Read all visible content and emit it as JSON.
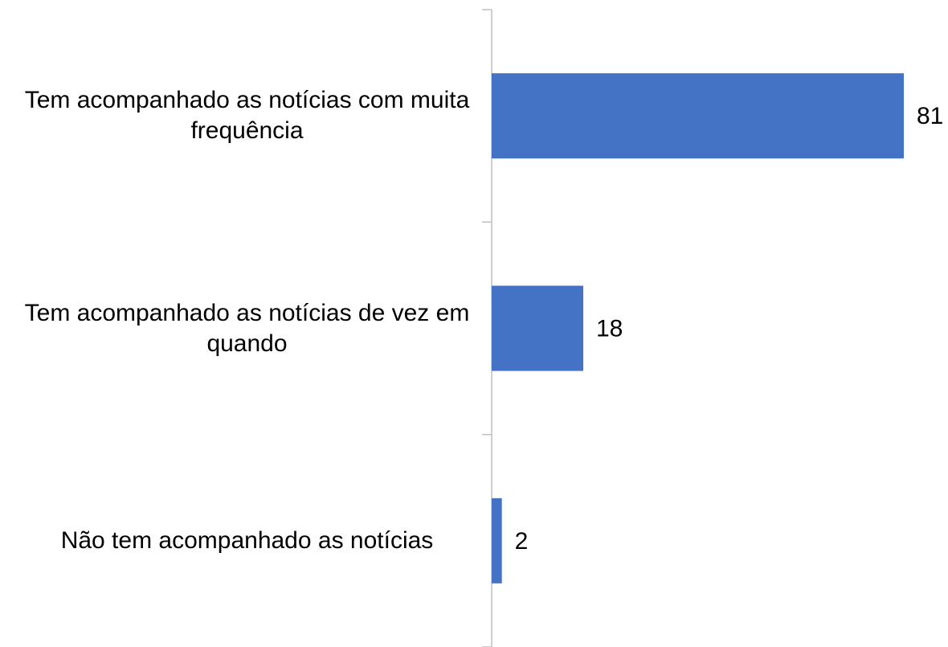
{
  "chart_data": {
    "type": "bar",
    "orientation": "horizontal",
    "categories": [
      "Tem acompanhado as notícias com muita frequência",
      "Tem acompanhado as notícias de vez em quando",
      "Não tem acompanhado as notícias"
    ],
    "values": [
      81,
      18,
      2
    ],
    "color": "#4472c4"
  }
}
